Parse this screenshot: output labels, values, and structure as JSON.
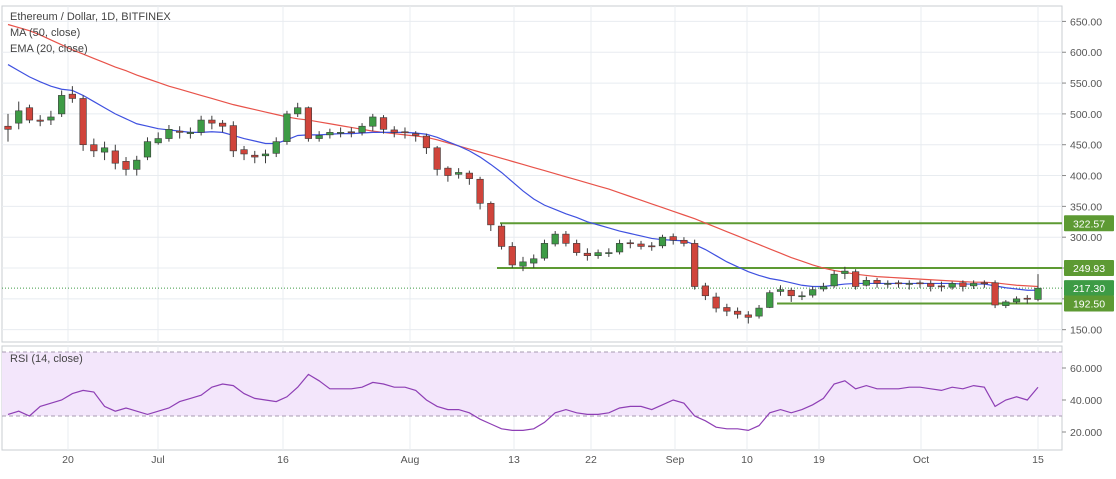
{
  "chart_data": {
    "type": "candlestick",
    "title": "Ethereum / Dollar, 1D, BITFINEX",
    "indicators": {
      "ma": {
        "label": "MA (50, close)",
        "color": "#e8534a"
      },
      "ema": {
        "label": "EMA (20, close)",
        "color": "#3f51e0"
      },
      "rsi": {
        "label": "RSI (14, close)",
        "color": "#8e3fb5",
        "band": [
          30,
          70
        ],
        "ticks": [
          "60.000",
          "40.000",
          "20.000"
        ]
      }
    },
    "colors": {
      "up": "#3d9b45",
      "down": "#d0443b",
      "level_line": "#5d9a33",
      "grid": "#e8ecf0"
    },
    "y_axis": {
      "price_ticks": [
        "650.00",
        "600.00",
        "550.00",
        "500.00",
        "450.00",
        "400.00",
        "350.00",
        "300.00",
        "250.00",
        "200.00",
        "150.00"
      ],
      "ylim": [
        130,
        675
      ]
    },
    "x_axis": {
      "tick_labels": [
        "20",
        "Jul",
        "16",
        "Aug",
        "13",
        "22",
        "Sep",
        "10",
        "19",
        "Oct",
        "15"
      ]
    },
    "level_labels": [
      "322.57",
      "249.93",
      "217.30",
      "192.50"
    ],
    "levels": [
      322.57,
      249.93,
      192.5
    ],
    "last_price": 217.3,
    "candles_close": [
      475,
      505,
      490,
      488,
      495,
      530,
      525,
      450,
      440,
      445,
      420,
      410,
      425,
      455,
      460,
      475,
      470,
      470,
      490,
      485,
      480,
      440,
      435,
      430,
      435,
      455,
      500,
      510,
      460,
      465,
      470,
      470,
      470,
      480,
      495,
      475,
      470,
      470,
      465,
      445,
      410,
      400,
      405,
      395,
      355,
      320,
      285,
      255,
      260,
      265,
      290,
      305,
      290,
      275,
      270,
      275,
      275,
      290,
      290,
      285,
      285,
      300,
      295,
      290,
      220,
      205,
      185,
      180,
      175,
      170,
      185,
      210,
      215,
      205,
      205,
      215,
      220,
      240,
      245,
      220,
      230,
      225,
      225,
      225,
      225,
      225,
      220,
      220,
      225,
      220,
      225,
      225,
      190,
      195,
      200,
      200,
      217.3
    ],
    "candles_open": [
      480,
      485,
      510,
      490,
      490,
      500,
      532,
      525,
      450,
      438,
      440,
      423,
      410,
      430,
      453,
      460,
      472,
      468,
      470,
      490,
      485,
      481,
      442,
      433,
      432,
      436,
      455,
      500,
      510,
      460,
      466,
      470,
      471,
      470,
      480,
      494,
      474,
      471,
      468,
      464,
      445,
      412,
      402,
      404,
      394,
      355,
      318,
      285,
      253,
      258,
      266,
      289,
      305,
      290,
      274,
      270,
      275,
      276,
      291,
      289,
      286,
      286,
      301,
      295,
      290,
      221,
      203,
      186,
      180,
      174,
      172,
      186,
      212,
      214,
      205,
      206,
      216,
      221,
      241,
      244,
      222,
      230,
      225,
      226,
      224,
      226,
      225,
      221,
      219,
      226,
      221,
      226,
      226,
      189,
      195,
      201,
      199
    ],
    "candles_high": [
      500,
      520,
      515,
      498,
      505,
      538,
      545,
      530,
      460,
      455,
      450,
      430,
      432,
      462,
      470,
      482,
      480,
      478,
      497,
      497,
      490,
      488,
      448,
      440,
      442,
      462,
      505,
      518,
      512,
      472,
      476,
      478,
      478,
      485,
      500,
      498,
      480,
      478,
      472,
      468,
      448,
      415,
      412,
      408,
      398,
      358,
      322,
      292,
      268,
      272,
      296,
      310,
      310,
      296,
      282,
      280,
      282,
      296,
      296,
      294,
      292,
      304,
      306,
      300,
      296,
      226,
      210,
      192,
      186,
      180,
      190,
      214,
      222,
      218,
      212,
      220,
      226,
      246,
      252,
      248,
      236,
      234,
      230,
      230,
      230,
      230,
      230,
      228,
      228,
      230,
      230,
      230,
      230,
      198,
      204,
      206,
      240
    ],
    "candles_low": [
      455,
      475,
      485,
      480,
      482,
      495,
      518,
      440,
      430,
      425,
      410,
      400,
      400,
      425,
      450,
      455,
      460,
      460,
      465,
      475,
      470,
      430,
      425,
      420,
      420,
      430,
      450,
      495,
      455,
      455,
      460,
      462,
      462,
      465,
      472,
      468,
      462,
      460,
      455,
      435,
      400,
      390,
      395,
      385,
      345,
      310,
      280,
      250,
      245,
      250,
      262,
      285,
      285,
      270,
      262,
      265,
      268,
      272,
      282,
      280,
      278,
      282,
      288,
      285,
      215,
      198,
      178,
      172,
      168,
      160,
      168,
      185,
      205,
      195,
      198,
      202,
      212,
      218,
      232,
      215,
      220,
      218,
      218,
      218,
      215,
      218,
      212,
      212,
      215,
      212,
      216,
      218,
      185,
      185,
      192,
      192,
      196
    ],
    "ma50": [
      645,
      640,
      635,
      628,
      620,
      612,
      604,
      597,
      590,
      583,
      576,
      570,
      563,
      557,
      551,
      545,
      540,
      535,
      530,
      525,
      520,
      515,
      511,
      507,
      503,
      499,
      495,
      492,
      490,
      487,
      484,
      481,
      478,
      475,
      472,
      470,
      468,
      466,
      464,
      462,
      458,
      453,
      448,
      443,
      438,
      433,
      428,
      423,
      418,
      413,
      408,
      403,
      398,
      393,
      388,
      383,
      378,
      372,
      366,
      360,
      354,
      348,
      342,
      336,
      330,
      323,
      316,
      309,
      302,
      295,
      288,
      281,
      274,
      267,
      261,
      255,
      250,
      246,
      243,
      240,
      238,
      236,
      235,
      234,
      233,
      232,
      231,
      230,
      229,
      228,
      227,
      227,
      226,
      224,
      222,
      221,
      220
    ],
    "ema20": [
      580,
      570,
      560,
      552,
      545,
      540,
      538,
      530,
      520,
      510,
      500,
      492,
      484,
      480,
      476,
      474,
      472,
      470,
      470,
      471,
      470,
      465,
      460,
      456,
      452,
      452,
      458,
      465,
      466,
      466,
      467,
      468,
      468,
      469,
      470,
      470,
      470,
      470,
      469,
      467,
      462,
      455,
      448,
      440,
      430,
      418,
      405,
      390,
      375,
      362,
      352,
      345,
      338,
      332,
      325,
      320,
      315,
      310,
      306,
      302,
      298,
      296,
      295,
      294,
      288,
      280,
      270,
      260,
      252,
      244,
      238,
      233,
      230,
      226,
      222,
      220,
      220,
      222,
      224,
      225,
      225,
      225,
      225,
      225,
      225,
      225,
      225,
      225,
      225,
      224,
      224,
      224,
      221,
      218,
      216,
      214,
      214
    ],
    "rsi": [
      31,
      33,
      30,
      36,
      38,
      40,
      44,
      46,
      45,
      36,
      33,
      35,
      33,
      31,
      33,
      35,
      39,
      41,
      43,
      48,
      50,
      49,
      44,
      41,
      40,
      39,
      42,
      48,
      56,
      52,
      47,
      47,
      47,
      48,
      51,
      50,
      48,
      48,
      46,
      40,
      36,
      34,
      34,
      32,
      28,
      25,
      22,
      21,
      21,
      22,
      26,
      32,
      34,
      32,
      31,
      31,
      32,
      35,
      36,
      36,
      34,
      37,
      40,
      38,
      30,
      27,
      23,
      22,
      22,
      21,
      24,
      32,
      34,
      32,
      34,
      37,
      41,
      50,
      52,
      47,
      49,
      47,
      47,
      47,
      48,
      48,
      47,
      46,
      48,
      47,
      49,
      48,
      36,
      40,
      42,
      40,
      48
    ]
  }
}
